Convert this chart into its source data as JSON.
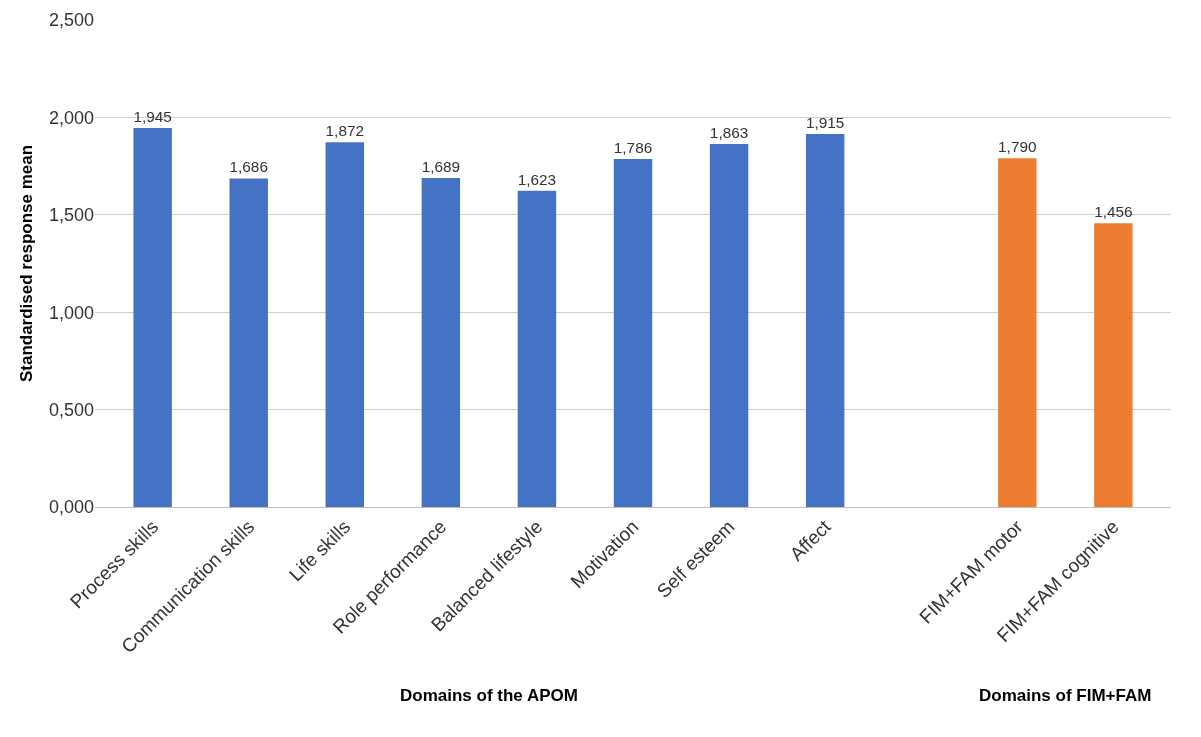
{
  "chart_data": {
    "type": "bar",
    "ylabel": "Standardised response mean",
    "categories": [
      "Process skills",
      "Communication skills",
      "Life skills",
      "Role performance",
      "Balanced lifestyle",
      "Motivation",
      "Self esteem",
      "Affect",
      null,
      "FIM+FAM motor",
      "FIM+FAM cognitive"
    ],
    "values": [
      1.945,
      1.686,
      1.872,
      1.689,
      1.623,
      1.786,
      1.863,
      1.915,
      null,
      1.79,
      1.456
    ],
    "value_labels": [
      "1,945",
      "1,686",
      "1,872",
      "1,689",
      "1,623",
      "1,786",
      "1,863",
      "1,915",
      null,
      "1,790",
      "1,456"
    ],
    "colors": [
      "#4472c4",
      "#4472c4",
      "#4472c4",
      "#4472c4",
      "#4472c4",
      "#4472c4",
      "#4472c4",
      "#4472c4",
      "#4472c4",
      "#ed7d31",
      "#ed7d31"
    ],
    "ylim": [
      0,
      2.5
    ],
    "yticks": [
      {
        "value": 0,
        "label": "0,000"
      },
      {
        "value": 0.5,
        "label": "0,500"
      },
      {
        "value": 1,
        "label": "1,000"
      },
      {
        "value": 1.5,
        "label": "1,500"
      },
      {
        "value": 2,
        "label": "2,000"
      },
      {
        "value": 2.5,
        "label": "2,500"
      }
    ],
    "grid": "y",
    "annotations": [
      "Domains of the APOM",
      "Domains of FIM+FAM"
    ]
  }
}
